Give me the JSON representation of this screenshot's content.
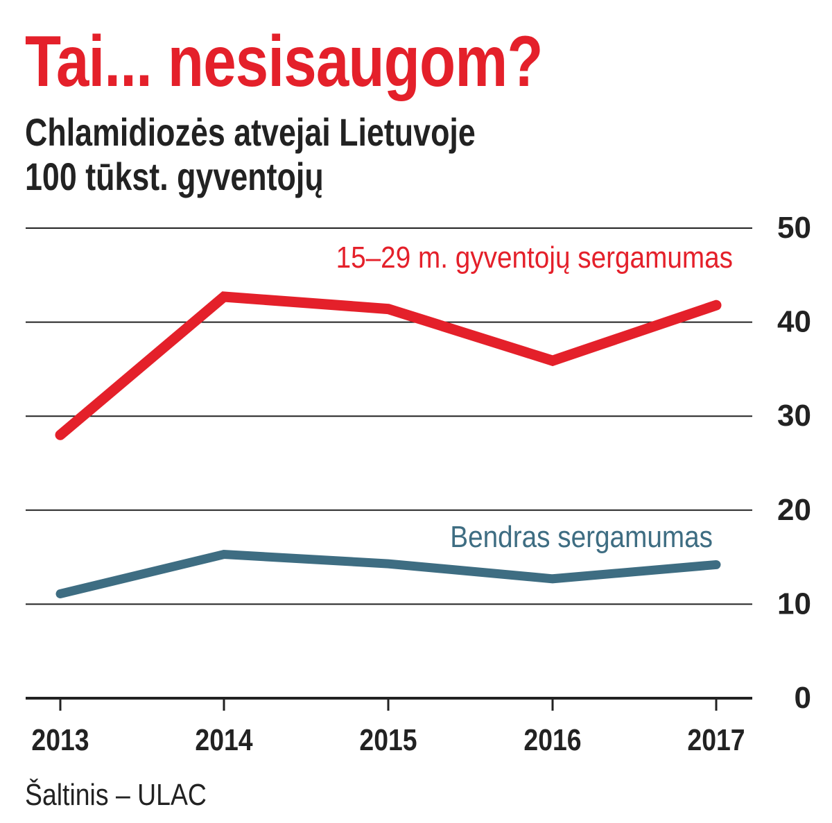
{
  "title": "Tai... nesisaugom?",
  "subtitle_line1": "Chlamidiozės atvejai Lietuvoje",
  "subtitle_line2": "100 tūkst. gyventojų",
  "source": "Šaltinis – ULAC",
  "chart_data": {
    "type": "line",
    "title": "Tai... nesisaugom?",
    "subtitle": "Chlamidiozės atvejai Lietuvoje 100 tūkst. gyventojų",
    "categories": [
      "2013",
      "2014",
      "2015",
      "2016",
      "2017"
    ],
    "ylim": [
      0,
      50
    ],
    "yticks": [
      0,
      10,
      20,
      30,
      40,
      50
    ],
    "grid": true,
    "series": [
      {
        "name": "15–29 m. gyventojų sergamumas",
        "color": "#e4202a",
        "values": [
          28.0,
          42.7,
          41.4,
          35.9,
          41.8
        ]
      },
      {
        "name": "Bendras sergamumas",
        "color": "#3e6d82",
        "values": [
          11.1,
          15.3,
          14.3,
          12.7,
          14.2
        ]
      }
    ]
  }
}
